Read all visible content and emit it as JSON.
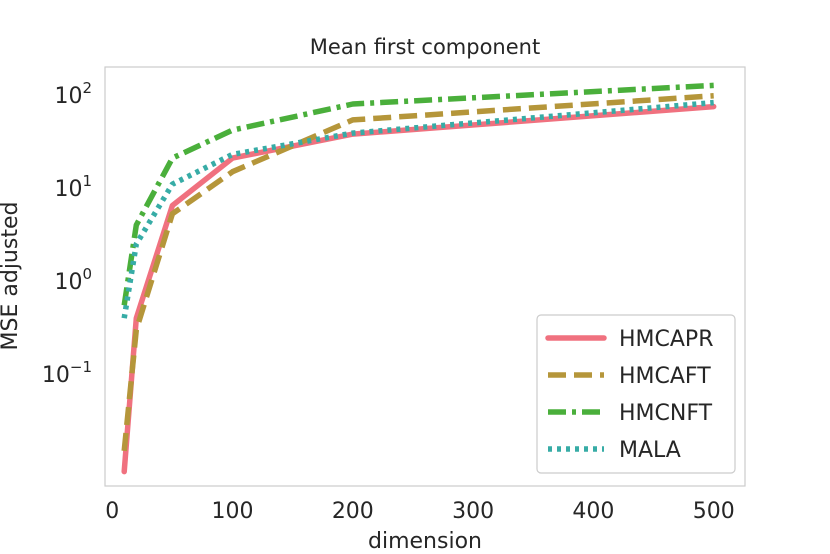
{
  "chart_data": {
    "type": "line",
    "title": "Mean first component",
    "xlabel": "dimension",
    "ylabel": "MSE adjusted",
    "yscale": "log",
    "xlim": [
      -6,
      526
    ],
    "ylim": [
      0.0063,
      200
    ],
    "x_ticks": [
      0,
      100,
      200,
      300,
      400,
      500
    ],
    "x_tick_labels": [
      "0",
      "100",
      "200",
      "300",
      "400",
      "500"
    ],
    "y_ticks": [
      0.1,
      1,
      10,
      100
    ],
    "y_tick_labels": [
      {
        "base": "10",
        "exp": "−1"
      },
      {
        "base": "10",
        "exp": "0"
      },
      {
        "base": "10",
        "exp": "1"
      },
      {
        "base": "10",
        "exp": "2"
      }
    ],
    "grid": false,
    "legend": "lower-right",
    "x": [
      10,
      20,
      50,
      100,
      200,
      500
    ],
    "series": [
      {
        "name": "HMCAPR",
        "color": "#f0717f",
        "dash": "solid",
        "values": [
          0.009,
          0.4,
          6.5,
          21,
          38,
          75
        ]
      },
      {
        "name": "HMCAFT",
        "color": "#b5963a",
        "dash": "dashed",
        "values": [
          0.015,
          0.3,
          5.3,
          15,
          54,
          98
        ]
      },
      {
        "name": "HMCNFT",
        "color": "#4aaf3b",
        "dash": "dashdot",
        "values": [
          0.55,
          4,
          21,
          42,
          80,
          127
        ]
      },
      {
        "name": "MALA",
        "color": "#37aca6",
        "dash": "dotted",
        "values": [
          0.4,
          2.5,
          11,
          23,
          39,
          83
        ]
      }
    ]
  }
}
